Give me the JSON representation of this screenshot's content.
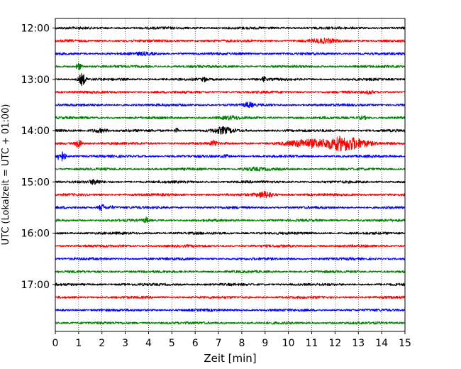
{
  "chart_data": {
    "type": "line",
    "title": "",
    "xlabel": "Zeit  [min]",
    "ylabel": "UTC (Lokalzeit = UTC + 01:00)",
    "xlim": [
      0,
      15
    ],
    "x_ticks": [
      0,
      1,
      2,
      3,
      4,
      5,
      6,
      7,
      8,
      9,
      10,
      11,
      12,
      13,
      14,
      15
    ],
    "x_tick_labels": [
      "0",
      "1",
      "2",
      "3",
      "4",
      "5",
      "6",
      "7",
      "8",
      "9",
      "10",
      "11",
      "12",
      "13",
      "14",
      "15"
    ],
    "y_tick_labels": [
      "12:00",
      "13:00",
      "14:00",
      "15:00",
      "16:00",
      "17:00"
    ],
    "vertical_gridlines": "dotted",
    "trace_colors": [
      "#000000",
      "#ff0000",
      "#0000ff",
      "#008000"
    ],
    "traces": [
      {
        "start": "12:00",
        "color": "#000000",
        "events": []
      },
      {
        "start": "12:15",
        "color": "#ff0000",
        "events": [
          {
            "t": 11.5,
            "amp": 0.4,
            "dur": 0.8
          }
        ]
      },
      {
        "start": "12:30",
        "color": "#0000ff",
        "events": [
          {
            "t": 3.8,
            "amp": 0.2,
            "dur": 0.6
          }
        ]
      },
      {
        "start": "12:45",
        "color": "#008000",
        "events": [
          {
            "t": 1.0,
            "amp": 0.9,
            "dur": 0.15
          }
        ]
      },
      {
        "start": "13:00",
        "color": "#000000",
        "events": [
          {
            "t": 1.15,
            "amp": 1.4,
            "dur": 0.2
          },
          {
            "t": 6.4,
            "amp": 0.4,
            "dur": 0.15
          },
          {
            "t": 8.95,
            "amp": 0.6,
            "dur": 0.1
          }
        ]
      },
      {
        "start": "13:15",
        "color": "#ff0000",
        "events": [
          {
            "t": 13.5,
            "amp": 0.35,
            "dur": 0.2
          }
        ]
      },
      {
        "start": "13:30",
        "color": "#0000ff",
        "events": [
          {
            "t": 8.3,
            "amp": 0.5,
            "dur": 0.3
          }
        ]
      },
      {
        "start": "13:45",
        "color": "#008000",
        "events": [
          {
            "t": 7.5,
            "amp": 0.3,
            "dur": 0.6
          },
          {
            "t": 13.2,
            "amp": 0.35,
            "dur": 0.3
          }
        ]
      },
      {
        "start": "14:00",
        "color": "#000000",
        "events": [
          {
            "t": 1.9,
            "amp": 0.4,
            "dur": 0.5
          },
          {
            "t": 5.2,
            "amp": 0.6,
            "dur": 0.1
          },
          {
            "t": 7.2,
            "amp": 0.7,
            "dur": 0.6
          }
        ]
      },
      {
        "start": "14:15",
        "color": "#ff0000",
        "events": [
          {
            "t": 1.0,
            "amp": 1.1,
            "dur": 0.2
          },
          {
            "t": 6.8,
            "amp": 0.6,
            "dur": 0.2
          },
          {
            "t": 10.8,
            "amp": 0.8,
            "dur": 1.2
          },
          {
            "t": 12.4,
            "amp": 1.8,
            "dur": 1.2
          }
        ]
      },
      {
        "start": "14:30",
        "color": "#0000ff",
        "events": [
          {
            "t": 0.25,
            "amp": 1.3,
            "dur": 0.25
          },
          {
            "t": 7.3,
            "amp": 0.3,
            "dur": 0.2
          }
        ]
      },
      {
        "start": "14:45",
        "color": "#008000",
        "events": [
          {
            "t": 8.5,
            "amp": 0.25,
            "dur": 0.8
          }
        ]
      },
      {
        "start": "15:00",
        "color": "#000000",
        "events": [
          {
            "t": 1.7,
            "amp": 0.5,
            "dur": 0.3
          }
        ]
      },
      {
        "start": "15:15",
        "color": "#ff0000",
        "events": [
          {
            "t": 9.0,
            "amp": 0.7,
            "dur": 0.5
          }
        ]
      },
      {
        "start": "15:30",
        "color": "#0000ff",
        "events": [
          {
            "t": 2.0,
            "amp": 0.8,
            "dur": 0.2
          },
          {
            "t": 2.4,
            "amp": 0.3,
            "dur": 0.2
          }
        ]
      },
      {
        "start": "15:45",
        "color": "#008000",
        "events": [
          {
            "t": 3.9,
            "amp": 0.6,
            "dur": 0.15
          }
        ]
      },
      {
        "start": "16:00",
        "color": "#000000",
        "events": []
      },
      {
        "start": "16:15",
        "color": "#ff0000",
        "events": []
      },
      {
        "start": "16:30",
        "color": "#0000ff",
        "events": []
      },
      {
        "start": "16:45",
        "color": "#008000",
        "events": []
      },
      {
        "start": "17:00",
        "color": "#000000",
        "events": []
      },
      {
        "start": "17:15",
        "color": "#ff0000",
        "events": []
      },
      {
        "start": "17:30",
        "color": "#0000ff",
        "events": []
      },
      {
        "start": "17:45",
        "color": "#008000",
        "events": []
      }
    ]
  }
}
